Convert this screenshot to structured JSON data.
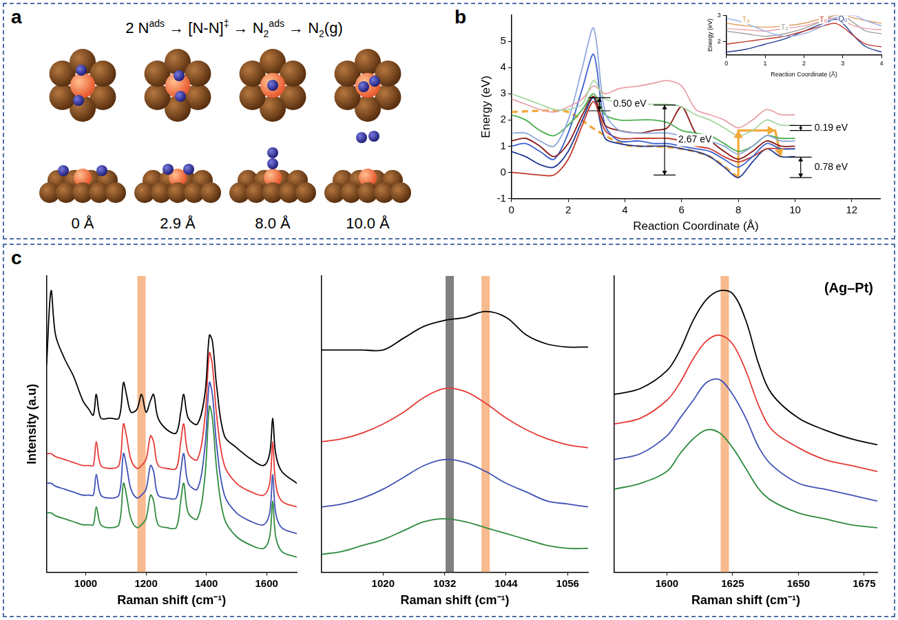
{
  "panel_letters": [
    "a",
    "b",
    "c"
  ],
  "panel_a": {
    "equation": [
      {
        "text": "2 N",
        "sup": "ads"
      },
      {
        "text": "[N-N]",
        "sup": "‡"
      },
      {
        "text": "N",
        "sub": "2",
        "sup": "ads"
      },
      {
        "text": "N",
        "sub": "2",
        "tail": "(g)"
      }
    ],
    "separator": "→",
    "stage_labels": [
      "0 Å",
      "2.9 Å",
      "8.0 Å",
      "10.0 Å"
    ]
  },
  "chart_data": [
    {
      "type": "line",
      "x_label": "Reaction Coordinate (Å)",
      "y_label": "Energy (eV)",
      "xlim": [
        0,
        13
      ],
      "ylim": [
        -1,
        6
      ],
      "xticks": [
        0,
        2,
        4,
        6,
        8,
        10,
        12
      ],
      "yticks": [
        -1,
        0,
        1,
        2,
        3,
        4,
        5
      ],
      "grid": false,
      "x": [
        0,
        0.5,
        1,
        1.5,
        2,
        2.5,
        2.9,
        3.3,
        3.8,
        4.5,
        5,
        5.5,
        6,
        6.5,
        7,
        7.5,
        8,
        8.5,
        9,
        9.5,
        10
      ],
      "series": [
        {
          "color": "#a8d5a2",
          "line_style": "solid",
          "values": [
            3.0,
            2.8,
            2.6,
            2.4,
            2.4,
            2.6,
            3.5,
            2.8,
            2.7,
            2.6,
            2.6,
            2.6,
            2.5,
            2.2,
            2.0,
            1.7,
            1.4,
            1.6,
            2.0,
            1.8,
            1.8
          ]
        },
        {
          "color": "#e8a0a8",
          "line_style": "solid",
          "values": [
            2.8,
            2.6,
            2.4,
            2.3,
            2.5,
            2.8,
            3.3,
            3.0,
            3.2,
            3.3,
            3.4,
            3.5,
            3.3,
            2.4,
            2.2,
            2.0,
            1.7,
            2.0,
            2.4,
            2.2,
            2.2
          ]
        },
        {
          "color": "#8fa8dc",
          "line_style": "solid",
          "values": [
            1.5,
            1.5,
            1.2,
            1.0,
            2.0,
            4.0,
            5.5,
            2.3,
            1.6,
            1.5,
            1.5,
            1.5,
            1.4,
            1.3,
            1.2,
            1.0,
            0.7,
            1.0,
            1.4,
            1.2,
            1.2
          ]
        },
        {
          "color": "#4caf50",
          "line_style": "solid",
          "values": [
            2.2,
            2.0,
            1.6,
            1.4,
            1.8,
            2.4,
            3.0,
            2.2,
            2.0,
            2.0,
            2.0,
            1.9,
            1.6,
            1.5,
            1.4,
            1.1,
            0.8,
            1.0,
            1.4,
            1.3,
            1.3
          ]
        },
        {
          "color": "#8b1a1a",
          "line_style": "solid",
          "values": [
            1.2,
            1.3,
            1.0,
            0.6,
            1.1,
            2.2,
            2.9,
            1.8,
            1.6,
            1.5,
            1.6,
            1.7,
            2.5,
            1.5,
            1.2,
            0.8,
            0.5,
            0.8,
            1.2,
            1.0,
            1.0
          ]
        },
        {
          "color": "#3a5fcd",
          "line_style": "solid",
          "values": [
            1.0,
            1.1,
            0.8,
            0.5,
            1.5,
            3.2,
            4.5,
            1.8,
            1.2,
            1.2,
            1.1,
            1.1,
            1.0,
            0.9,
            0.8,
            0.5,
            0.2,
            0.6,
            1.1,
            0.9,
            0.9
          ]
        },
        {
          "color": "#c0392b",
          "line_style": "solid",
          "values": [
            0.0,
            -0.05,
            -0.1,
            -0.1,
            0.5,
            1.8,
            2.7,
            1.6,
            1.3,
            1.3,
            1.3,
            1.3,
            1.2,
            1.0,
            0.9,
            0.6,
            0.4,
            0.6,
            0.9,
            0.9,
            0.9
          ]
        },
        {
          "color": "#1f3a93",
          "line_style": "solid",
          "values": [
            0.8,
            0.6,
            0.3,
            0.2,
            0.8,
            2.0,
            2.85,
            1.3,
            1.1,
            1.0,
            1.0,
            1.0,
            0.9,
            0.8,
            0.6,
            0.2,
            -0.2,
            0.4,
            0.9,
            0.6,
            0.6
          ]
        },
        {
          "color": "#f2a93b",
          "line_style": "dashed",
          "x": [
            0,
            1,
            2,
            3,
            4,
            5,
            6,
            7,
            8
          ],
          "values": [
            2.3,
            2.35,
            2.3,
            1.6,
            1.05,
            1.0,
            0.9,
            0.6,
            -0.2
          ]
        },
        {
          "color": "#f2a93b",
          "line_style": "solid",
          "marker": "arrow",
          "x": [
            8,
            8,
            9.3,
            9.5
          ],
          "values": [
            -0.2,
            1.6,
            1.6,
            0.6
          ]
        }
      ],
      "annotations": [
        {
          "text": "0.50 eV",
          "x": 3.1,
          "y_from": 2.35,
          "y_to": 2.85
        },
        {
          "text": "2.67 eV",
          "x": 5.4,
          "y_from": -0.1,
          "y_to": 2.57
        },
        {
          "text": "0.19 eV",
          "x": 10.2,
          "y_from": 1.6,
          "y_to": 1.79
        },
        {
          "text": "0.78 eV",
          "x": 10.2,
          "y_from": -0.2,
          "y_to": 0.58
        }
      ]
    },
    {
      "type": "line",
      "x_label": "Reaction Coordinate (Å)",
      "y_label": "Energy (eV)",
      "xlim": [
        0,
        4
      ],
      "ylim": [
        1.5,
        3
      ],
      "xticks": [
        0,
        1,
        2,
        3,
        4
      ],
      "yticks": [
        2,
        3
      ],
      "grid": false,
      "x": [
        0,
        0.5,
        1,
        1.5,
        2,
        2.5,
        2.8,
        3,
        3.3,
        3.6,
        4
      ],
      "series": [
        {
          "color": "#9fb4e6",
          "line_style": "solid",
          "values": [
            2.9,
            2.7,
            2.4,
            2.2,
            2.3,
            2.6,
            2.9,
            3.0,
            3.0,
            2.8,
            2.6
          ]
        },
        {
          "color": "#e8a0a8",
          "line_style": "solid",
          "values": [
            2.5,
            2.45,
            2.4,
            2.5,
            2.6,
            2.8,
            2.9,
            2.8,
            2.6,
            2.5,
            2.45
          ]
        },
        {
          "name": "T₉",
          "label_x": 0.5,
          "color": "#e0a060",
          "line_style": "solid",
          "values": [
            2.7,
            2.6,
            2.55,
            2.6,
            2.7,
            2.9,
            3.0,
            3.0,
            2.9,
            2.8,
            2.7
          ]
        },
        {
          "name": "T₆",
          "label_x": 1.5,
          "color": "#9e9e9e",
          "line_style": "solid",
          "values": [
            2.4,
            2.3,
            2.2,
            2.3,
            2.5,
            2.8,
            3.0,
            3.0,
            2.7,
            2.4,
            2.3
          ]
        },
        {
          "name": "T₀",
          "label_x": 2.5,
          "color": "#c0392b",
          "line_style": "solid",
          "values": [
            1.9,
            2.0,
            2.1,
            2.2,
            2.4,
            2.6,
            2.7,
            2.55,
            2.2,
            1.9,
            1.8
          ]
        },
        {
          "name": "Q₀",
          "label_x": 3,
          "color": "#1f3a93",
          "line_style": "solid",
          "values": [
            1.6,
            1.7,
            1.9,
            2.1,
            2.4,
            2.7,
            2.85,
            2.7,
            2.2,
            1.8,
            1.6
          ]
        }
      ]
    },
    {
      "type": "line",
      "x_label": "Raman shift (cm⁻¹)",
      "y_label": "Intensity (a.u)",
      "xlim": [
        870,
        1700
      ],
      "ylim": [
        0,
        100
      ],
      "xticks": [
        1000,
        1200,
        1400,
        1600
      ],
      "tick_labels": "x",
      "grid": false,
      "bands": [
        {
          "x": 1185,
          "color": "#f4a46a"
        }
      ],
      "x": [
        870,
        885,
        900,
        930,
        960,
        990,
        1010,
        1025,
        1035,
        1050,
        1080,
        1110,
        1125,
        1135,
        1150,
        1170,
        1185,
        1200,
        1215,
        1225,
        1240,
        1270,
        1300,
        1315,
        1325,
        1340,
        1370,
        1395,
        1410,
        1420,
        1435,
        1460,
        1500,
        1550,
        1590,
        1610,
        1620,
        1630,
        1650,
        1700
      ],
      "series": [
        {
          "color": "#000000",
          "values": [
            70,
            95,
            80,
            72,
            66,
            58,
            55,
            53,
            60,
            52,
            52,
            52,
            64,
            60,
            54,
            55,
            60,
            54,
            58,
            60,
            52,
            48,
            47,
            54,
            60,
            52,
            50,
            60,
            80,
            78,
            62,
            46,
            42,
            38,
            36,
            40,
            52,
            40,
            34,
            30
          ]
        },
        {
          "color": "#e53935",
          "values": [
            40,
            40,
            39,
            38,
            37,
            36,
            36,
            36,
            44,
            36,
            35,
            36,
            50,
            46,
            38,
            35,
            36,
            38,
            46,
            44,
            36,
            35,
            35,
            44,
            50,
            40,
            38,
            52,
            74,
            70,
            52,
            36,
            30,
            27,
            26,
            30,
            44,
            30,
            24,
            22
          ]
        },
        {
          "color": "#3f51b5",
          "values": [
            30,
            30,
            29,
            28,
            27,
            26,
            26,
            26,
            33,
            26,
            25,
            26,
            40,
            36,
            28,
            25,
            26,
            28,
            36,
            34,
            26,
            25,
            25,
            34,
            40,
            30,
            28,
            42,
            64,
            60,
            42,
            26,
            20,
            17,
            16,
            20,
            33,
            20,
            15,
            13
          ]
        },
        {
          "color": "#2e8b3e",
          "values": [
            20,
            20,
            19,
            18,
            17,
            16,
            16,
            16,
            22,
            16,
            15,
            16,
            30,
            26,
            18,
            15,
            16,
            18,
            26,
            24,
            16,
            15,
            15,
            24,
            30,
            20,
            18,
            32,
            56,
            52,
            34,
            18,
            12,
            9,
            8,
            12,
            24,
            12,
            7,
            5
          ]
        }
      ]
    },
    {
      "type": "line",
      "x_label": "Raman shift (cm⁻¹)",
      "xlim": [
        1008,
        1060
      ],
      "ylim": [
        0,
        100
      ],
      "xticks": [
        1020,
        1032,
        1044,
        1056
      ],
      "tick_labels": "x",
      "grid": false,
      "bands": [
        {
          "x": 1033,
          "color": "#555555"
        },
        {
          "x": 1040,
          "color": "#f4a46a"
        }
      ],
      "x": [
        1008,
        1012,
        1016,
        1020,
        1024,
        1028,
        1032,
        1036,
        1040,
        1044,
        1048,
        1052,
        1056,
        1060
      ],
      "series": [
        {
          "color": "#000000",
          "values": [
            75,
            75,
            75,
            75,
            79,
            83,
            85,
            86,
            88,
            86,
            80,
            77,
            76,
            76
          ]
        },
        {
          "color": "#e53935",
          "values": [
            44,
            45,
            47,
            50,
            54,
            59,
            62,
            61,
            57,
            52,
            48,
            45,
            43,
            42
          ]
        },
        {
          "color": "#3f51b5",
          "values": [
            22,
            23,
            25,
            28,
            32,
            36,
            38,
            37,
            34,
            30,
            27,
            24,
            23,
            22
          ]
        },
        {
          "color": "#2e8b3e",
          "values": [
            6,
            7,
            9,
            11,
            14,
            17,
            18,
            17,
            15,
            13,
            11,
            9,
            8,
            8
          ]
        }
      ]
    },
    {
      "type": "line",
      "x_label": "Raman shift (cm⁻¹)",
      "xlim": [
        1580,
        1680
      ],
      "ylim": [
        0,
        100
      ],
      "xticks": [
        1600,
        1625,
        1650,
        1675
      ],
      "tick_labels": "x",
      "grid": false,
      "bands": [
        {
          "x": 1622,
          "color": "#f4a46a"
        }
      ],
      "annotations": [
        {
          "text": "(Ag–Pt)"
        }
      ],
      "x": [
        1580,
        1590,
        1600,
        1605,
        1610,
        1615,
        1620,
        1625,
        1630,
        1635,
        1640,
        1650,
        1660,
        1670,
        1680
      ],
      "series": [
        {
          "color": "#000000",
          "values": [
            60,
            62,
            68,
            75,
            85,
            92,
            95,
            94,
            85,
            70,
            60,
            52,
            48,
            45,
            43
          ]
        },
        {
          "color": "#e53935",
          "values": [
            50,
            52,
            58,
            64,
            72,
            78,
            80,
            77,
            68,
            56,
            48,
            42,
            38,
            36,
            34
          ]
        },
        {
          "color": "#3f51b5",
          "values": [
            38,
            40,
            46,
            52,
            58,
            64,
            65,
            60,
            52,
            42,
            36,
            30,
            28,
            26,
            24
          ]
        },
        {
          "color": "#2e8b3e",
          "values": [
            28,
            30,
            34,
            40,
            45,
            48,
            47,
            42,
            35,
            28,
            24,
            20,
            18,
            16,
            15
          ]
        }
      ]
    }
  ]
}
